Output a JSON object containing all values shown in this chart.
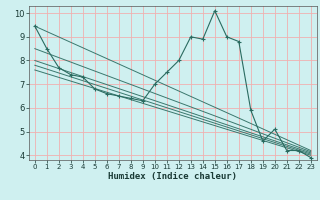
{
  "xlabel": "Humidex (Indice chaleur)",
  "background_color": "#cff0f0",
  "grid_color": "#f0b0b0",
  "line_color": "#2a6b60",
  "xlim": [
    -0.5,
    23.5
  ],
  "ylim": [
    3.8,
    10.3
  ],
  "yticks": [
    4,
    5,
    6,
    7,
    8,
    9,
    10
  ],
  "xticks": [
    0,
    1,
    2,
    3,
    4,
    5,
    6,
    7,
    8,
    9,
    10,
    11,
    12,
    13,
    14,
    15,
    16,
    17,
    18,
    19,
    20,
    21,
    22,
    23
  ],
  "series": [
    [
      0,
      9.45
    ],
    [
      1,
      8.5
    ],
    [
      2,
      7.7
    ],
    [
      3,
      7.4
    ],
    [
      4,
      7.3
    ],
    [
      5,
      6.8
    ],
    [
      6,
      6.6
    ],
    [
      7,
      6.5
    ],
    [
      8,
      6.4
    ],
    [
      9,
      6.3
    ],
    [
      10,
      7.0
    ],
    [
      11,
      7.5
    ],
    [
      12,
      8.0
    ],
    [
      13,
      9.0
    ],
    [
      14,
      8.9
    ],
    [
      15,
      10.1
    ],
    [
      16,
      9.0
    ],
    [
      17,
      8.8
    ],
    [
      18,
      5.9
    ],
    [
      19,
      4.6
    ],
    [
      20,
      5.1
    ],
    [
      21,
      4.2
    ],
    [
      22,
      4.2
    ],
    [
      23,
      3.9
    ]
  ],
  "linear_series": [
    [
      [
        0,
        9.45
      ],
      [
        23,
        4.2
      ]
    ],
    [
      [
        0,
        8.5
      ],
      [
        23,
        4.15
      ]
    ],
    [
      [
        0,
        8.0
      ],
      [
        23,
        4.1
      ]
    ],
    [
      [
        0,
        7.8
      ],
      [
        23,
        4.05
      ]
    ],
    [
      [
        0,
        7.6
      ],
      [
        23,
        4.0
      ]
    ]
  ]
}
